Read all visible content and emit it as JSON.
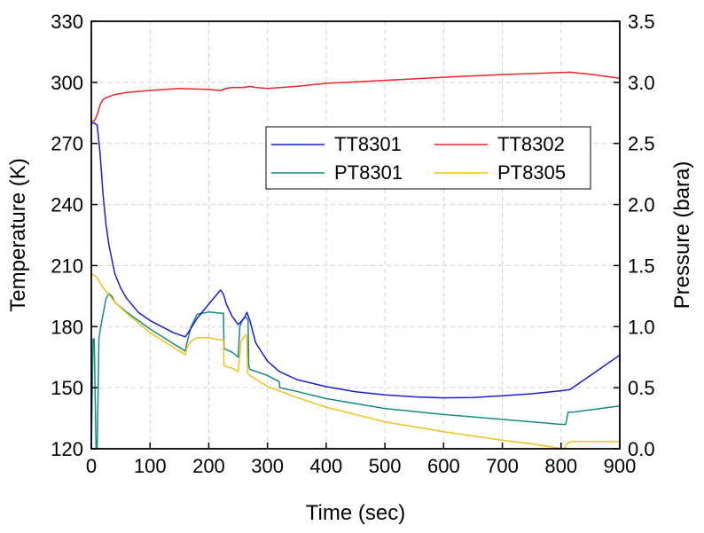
{
  "chart_data": {
    "type": "line",
    "title": "",
    "xlabel": "Time (sec)",
    "ylabel_left": "Temperature (K)",
    "ylabel_right": "Pressure (bara)",
    "xlim": [
      0,
      900
    ],
    "ylim_left": [
      120,
      330
    ],
    "ylim_right": [
      0.0,
      3.5
    ],
    "x_ticks": [
      0,
      100,
      200,
      300,
      400,
      500,
      600,
      700,
      800,
      900
    ],
    "y_left_ticks": [
      120,
      150,
      180,
      210,
      240,
      270,
      300,
      330
    ],
    "y_right_ticks": [
      "0.0",
      "0.5",
      "1.0",
      "1.5",
      "2.0",
      "2.5",
      "3.0",
      "3.5"
    ],
    "grid": true,
    "legend_placement": "center-right",
    "series": [
      {
        "name": "TT8301",
        "axis": "left",
        "color": "#1c1ccc",
        "x": [
          0,
          5,
          10,
          15,
          20,
          25,
          30,
          40,
          50,
          60,
          80,
          100,
          120,
          140,
          160,
          165,
          180,
          200,
          220,
          225,
          230,
          240,
          250,
          260,
          265,
          270,
          280,
          300,
          320,
          350,
          400,
          450,
          500,
          550,
          600,
          650,
          700,
          750,
          800,
          815,
          850,
          900
        ],
        "y": [
          280,
          280,
          279,
          265,
          245,
          230,
          220,
          206,
          199,
          194,
          187,
          183,
          180,
          177,
          175,
          177,
          184,
          191,
          198,
          196,
          191,
          185,
          181,
          184,
          187,
          183,
          172,
          163,
          158,
          154,
          150.5,
          148,
          146.5,
          145.5,
          145,
          145.2,
          146,
          147,
          148.5,
          149,
          156,
          166
        ]
      },
      {
        "name": "TT8302",
        "axis": "left",
        "color": "#e8262a",
        "x": [
          0,
          5,
          10,
          15,
          20,
          25,
          30,
          40,
          60,
          100,
          150,
          200,
          220,
          230,
          240,
          260,
          270,
          280,
          300,
          350,
          400,
          500,
          600,
          700,
          800,
          815,
          850,
          900
        ],
        "y": [
          281,
          281,
          284,
          289,
          291.5,
          292.5,
          293,
          294,
          295,
          296,
          297,
          296.5,
          296,
          297,
          297.5,
          297.5,
          298,
          297.5,
          297,
          298,
          299.5,
          301,
          302.5,
          303.8,
          304.8,
          305,
          304,
          302
        ]
      },
      {
        "name": "PT8301",
        "axis": "right",
        "color": "#198a82",
        "x": [
          0,
          3,
          5,
          8,
          10,
          13,
          16,
          20,
          25,
          30,
          35,
          40,
          60,
          80,
          100,
          120,
          140,
          160,
          163,
          170,
          180,
          200,
          220,
          225,
          226,
          240,
          250,
          253,
          258,
          262,
          265,
          267,
          268,
          270,
          300,
          320,
          321,
          350,
          400,
          500,
          600,
          700,
          800,
          808,
          812,
          820,
          900
        ],
        "y": [
          0.0,
          0.9,
          0.9,
          0.0,
          0.0,
          0.9,
          1.0,
          1.1,
          1.23,
          1.27,
          1.25,
          1.2,
          1.12,
          1.05,
          0.98,
          0.92,
          0.86,
          0.8,
          0.87,
          1.0,
          1.1,
          1.12,
          1.11,
          1.11,
          0.82,
          0.79,
          0.75,
          1.0,
          1.06,
          1.08,
          1.07,
          1.05,
          0.68,
          0.65,
          0.6,
          0.55,
          0.5,
          0.47,
          0.41,
          0.33,
          0.28,
          0.24,
          0.2,
          0.2,
          0.3,
          0.3,
          0.35
        ]
      },
      {
        "name": "PT8305",
        "axis": "right",
        "color": "#f2c21c",
        "x": [
          0,
          2,
          10,
          20,
          40,
          60,
          80,
          100,
          120,
          140,
          160,
          163,
          170,
          180,
          200,
          220,
          225,
          226,
          240,
          250,
          255,
          262,
          265,
          266,
          270,
          300,
          350,
          400,
          500,
          600,
          700,
          750,
          790,
          805,
          812,
          820,
          900
        ],
        "y": [
          1.43,
          1.43,
          1.4,
          1.32,
          1.2,
          1.11,
          1.03,
          0.95,
          0.89,
          0.83,
          0.77,
          0.83,
          0.88,
          0.91,
          0.91,
          0.89,
          0.89,
          0.68,
          0.66,
          0.63,
          0.88,
          0.93,
          0.92,
          0.62,
          0.6,
          0.51,
          0.42,
          0.34,
          0.22,
          0.14,
          0.07,
          0.04,
          0.01,
          0.0,
          0.05,
          0.06,
          0.06
        ]
      }
    ]
  }
}
